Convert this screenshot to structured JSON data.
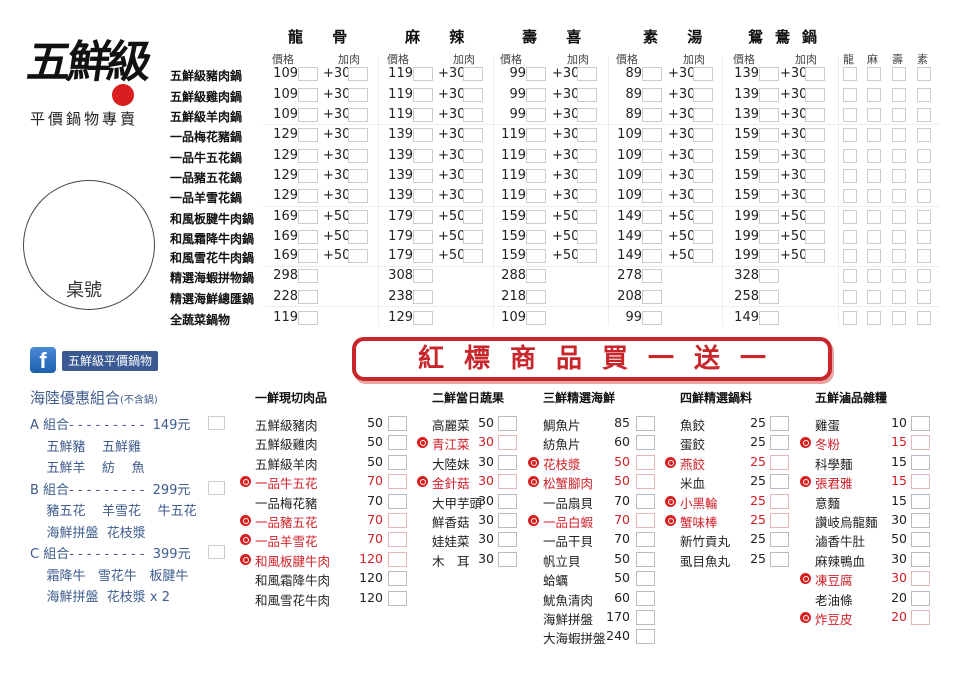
{
  "logo": {
    "text": "五鮮級",
    "slogan": "平價鍋物專賣",
    "accent": "#d81e1e"
  },
  "table_number_label": "桌號",
  "pot_menu": {
    "broths": [
      {
        "name": "龍 骨",
        "price_label": "價格",
        "addon_label": "加肉"
      },
      {
        "name": "麻 辣",
        "price_label": "價格",
        "addon_label": "加肉"
      },
      {
        "name": "壽 喜",
        "price_label": "價格",
        "addon_label": "加肉"
      },
      {
        "name": "素 湯",
        "price_label": "價格",
        "addon_label": "加肉"
      },
      {
        "name": "鴛鴦鍋",
        "price_label": "價格",
        "addon_label": "加肉"
      }
    ],
    "split_headers": [
      "龍",
      "麻",
      "壽",
      "素"
    ],
    "rows": [
      {
        "name": "五鮮級豬肉鍋",
        "prices": [
          "109",
          "119",
          "99",
          "89",
          "139"
        ],
        "addon": "+30"
      },
      {
        "name": "五鮮級雞肉鍋",
        "prices": [
          "109",
          "119",
          "99",
          "89",
          "139"
        ],
        "addon": "+30"
      },
      {
        "name": "五鮮級羊肉鍋",
        "prices": [
          "109",
          "119",
          "99",
          "89",
          "139"
        ],
        "addon": "+30"
      },
      {
        "name": "一品梅花豬鍋",
        "prices": [
          "129",
          "139",
          "119",
          "109",
          "159"
        ],
        "addon": "+30"
      },
      {
        "name": "一品牛五花鍋",
        "prices": [
          "129",
          "139",
          "119",
          "109",
          "159"
        ],
        "addon": "+30"
      },
      {
        "name": "一品豬五花鍋",
        "prices": [
          "129",
          "139",
          "119",
          "109",
          "159"
        ],
        "addon": "+30"
      },
      {
        "name": "一品羊雪花鍋",
        "prices": [
          "129",
          "139",
          "119",
          "109",
          "159"
        ],
        "addon": "+30"
      },
      {
        "name": "和風板腱牛肉鍋",
        "prices": [
          "169",
          "179",
          "159",
          "149",
          "199"
        ],
        "addon": "+50"
      },
      {
        "name": "和風霜降牛肉鍋",
        "prices": [
          "169",
          "179",
          "159",
          "149",
          "199"
        ],
        "addon": "+50"
      },
      {
        "name": "和風雪花牛肉鍋",
        "prices": [
          "169",
          "179",
          "159",
          "149",
          "199"
        ],
        "addon": "+50"
      },
      {
        "name": "精選海蝦拼物鍋",
        "prices": [
          "298",
          "308",
          "288",
          "278",
          "328"
        ],
        "addon": ""
      },
      {
        "name": "精選海鮮總匯鍋",
        "prices": [
          "228",
          "238",
          "218",
          "208",
          "258"
        ],
        "addon": ""
      },
      {
        "name": "全蔬菜鍋物",
        "prices": [
          "119",
          "129",
          "109",
          "99",
          "149"
        ],
        "addon": ""
      }
    ]
  },
  "facebook": {
    "icon": "facebook-icon",
    "label": "五鮮級平價鍋物"
  },
  "banner": {
    "text": "紅標商品買一送一",
    "color": "#c8262a"
  },
  "combos": {
    "title": "海陸優惠組合",
    "note": "(不含鍋)",
    "lines": [
      {
        "text": "A 組合- - - - - - - - -  149元",
        "box": true
      },
      {
        "text": "    五鮮豬    五鮮雞",
        "box": false
      },
      {
        "text": "    五鮮羊    紡    魚",
        "box": false
      },
      {
        "text": "B 組合- - - - - - - - -  299元",
        "box": true
      },
      {
        "text": "    豬五花    羊雪花    牛五花",
        "box": false
      },
      {
        "text": "    海鮮拼盤  花枝漿",
        "box": false
      },
      {
        "text": "C 組合- - - - - - - - -  399元",
        "box": true
      },
      {
        "text": "    霜降牛   雪花牛   板腱牛",
        "box": false
      },
      {
        "text": "    海鮮拼盤  花枝漿 x 2",
        "box": false
      }
    ]
  },
  "sections": [
    {
      "title": "一鮮現切肉品",
      "items": [
        {
          "name": "五鮮級豬肉",
          "price": "50",
          "promo": false
        },
        {
          "name": "五鮮級雞肉",
          "price": "50",
          "promo": false
        },
        {
          "name": "五鮮級羊肉",
          "price": "50",
          "promo": false
        },
        {
          "name": "一品牛五花",
          "price": "70",
          "promo": true
        },
        {
          "name": "一品梅花豬",
          "price": "70",
          "promo": false
        },
        {
          "name": "一品豬五花",
          "price": "70",
          "promo": true
        },
        {
          "name": "一品羊雪花",
          "price": "70",
          "promo": true
        },
        {
          "name": "和風板腱牛肉",
          "price": "120",
          "promo": true
        },
        {
          "name": "和風霜降牛肉",
          "price": "120",
          "promo": false
        },
        {
          "name": "和風雪花牛肉",
          "price": "120",
          "promo": false
        }
      ]
    },
    {
      "title": "二鮮當日蔬果",
      "items": [
        {
          "name": "高麗菜",
          "price": "50",
          "promo": false
        },
        {
          "name": "青江菜",
          "price": "30",
          "promo": true
        },
        {
          "name": "大陸妹",
          "price": "30",
          "promo": false
        },
        {
          "name": "金針菇",
          "price": "30",
          "promo": true
        },
        {
          "name": "大甲芋頭",
          "price": "30",
          "promo": false
        },
        {
          "name": "鮮香菇",
          "price": "30",
          "promo": false
        },
        {
          "name": "娃娃菜",
          "price": "30",
          "promo": false
        },
        {
          "name": "木　耳",
          "price": "30",
          "promo": false
        }
      ]
    },
    {
      "title": "三鮮精選海鮮",
      "items": [
        {
          "name": "鯛魚片",
          "price": "85",
          "promo": false
        },
        {
          "name": "紡魚片",
          "price": "60",
          "promo": false
        },
        {
          "name": "花枝漿",
          "price": "50",
          "promo": true
        },
        {
          "name": "松蟹腳肉",
          "price": "50",
          "promo": true
        },
        {
          "name": "一品扇貝",
          "price": "70",
          "promo": false
        },
        {
          "name": "一品白蝦",
          "price": "70",
          "promo": true
        },
        {
          "name": "一品干貝",
          "price": "70",
          "promo": false
        },
        {
          "name": "帆立貝",
          "price": "50",
          "promo": false
        },
        {
          "name": "蛤蠣",
          "price": "50",
          "promo": false
        },
        {
          "name": "魷魚清肉",
          "price": "60",
          "promo": false
        },
        {
          "name": "海鮮拼盤",
          "price": "170",
          "promo": false
        },
        {
          "name": "大海蝦拼盤",
          "price": "240",
          "promo": false
        }
      ]
    },
    {
      "title": "四鮮精選鍋料",
      "items": [
        {
          "name": "魚餃",
          "price": "25",
          "promo": false
        },
        {
          "name": "蛋餃",
          "price": "25",
          "promo": false
        },
        {
          "name": "燕餃",
          "price": "25",
          "promo": true
        },
        {
          "name": "米血",
          "price": "25",
          "promo": false
        },
        {
          "name": "小黑輪",
          "price": "25",
          "promo": true
        },
        {
          "name": "蟹味棒",
          "price": "25",
          "promo": true
        },
        {
          "name": "新竹貢丸",
          "price": "25",
          "promo": false
        },
        {
          "name": "虱目魚丸",
          "price": "25",
          "promo": false
        }
      ]
    },
    {
      "title": "五鮮滷品雜糧",
      "items": [
        {
          "name": "雞蛋",
          "price": "10",
          "promo": false
        },
        {
          "name": "冬粉",
          "price": "15",
          "promo": true
        },
        {
          "name": "科學麵",
          "price": "15",
          "promo": false
        },
        {
          "name": "張君雅",
          "price": "15",
          "promo": true
        },
        {
          "name": "意麵",
          "price": "15",
          "promo": false
        },
        {
          "name": "讚岐烏龍麵",
          "price": "30",
          "promo": false
        },
        {
          "name": "滷香牛肚",
          "price": "50",
          "promo": false
        },
        {
          "name": "麻辣鴨血",
          "price": "30",
          "promo": false
        },
        {
          "name": "凍豆腐",
          "price": "30",
          "promo": true
        },
        {
          "name": "老油條",
          "price": "20",
          "promo": false
        },
        {
          "name": "炸豆皮",
          "price": "20",
          "promo": true
        }
      ]
    }
  ]
}
